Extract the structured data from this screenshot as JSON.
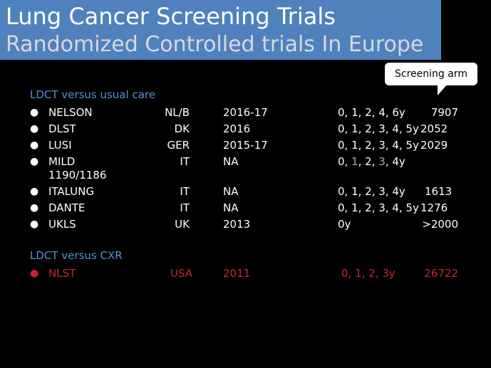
{
  "title": {
    "line1": "Lung Cancer Screening Trials",
    "line2": "Randomized Controlled trials In Europe"
  },
  "callout": {
    "label": "Screening arm"
  },
  "sections": {
    "ldct_usual": "LDCT versus usual care",
    "ldct_cxr": "LDCT versus CXR"
  },
  "bullet_glyph": "●",
  "trials": [
    {
      "name": "NELSON",
      "country": "NL/B",
      "years": "2016-17",
      "schedule": "0, 1, 2, 4, 6y",
      "size": "7907"
    },
    {
      "name": "DLST",
      "country": "DK",
      "years": "2016",
      "schedule": "0, 1, 2, 3, 4, 5y",
      "size": "2052"
    },
    {
      "name": "LUSI",
      "country": "GER",
      "years": "2015-17",
      "schedule": "0, 1, 2, 3, 4, 5y",
      "size": "2029"
    },
    {
      "name": "MILD",
      "country": "IT",
      "years": "NA",
      "schedule_parts": [
        "0, ",
        "1",
        ", 2, ",
        "3",
        ", 4y"
      ],
      "size_line2": "1190/1186"
    },
    {
      "name": "ITALUNG",
      "country": "IT",
      "years": "NA",
      "schedule": "0, 1, 2, 3, 4y",
      "size": "1613"
    },
    {
      "name": "DANTE",
      "country": "IT",
      "years": "NA",
      "schedule": "0, 1, 2, 3, 4, 5y",
      "size": "1276"
    },
    {
      "name": "UKLS",
      "country": "UK",
      "years": "2013",
      "schedule": "0y",
      "size": ">2000"
    }
  ],
  "nlst": {
    "name": "NLST",
    "country": "USA",
    "years": "2011",
    "schedule": "0, 1, 2, 3y",
    "size": "26722"
  },
  "colors": {
    "title_bg": "#4f81bd",
    "section_blue": "#5b8fd6",
    "highlight_red": "#c0272d",
    "muted_grey": "#a6a6a6"
  }
}
